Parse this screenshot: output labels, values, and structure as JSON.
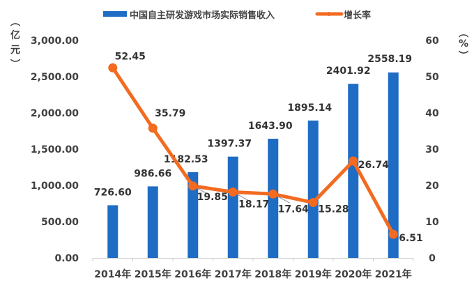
{
  "chart_data": {
    "type": "bar+line",
    "title": "",
    "categories": [
      "2014年",
      "2015年",
      "2016年",
      "2017年",
      "2018年",
      "2019年",
      "2020年",
      "2021年"
    ],
    "series": [
      {
        "name": "中国自主研发游戏市场实际销售收入",
        "type": "bar",
        "axis": "left",
        "color": "#1F6CC4",
        "values": [
          726.6,
          986.66,
          1182.53,
          1397.37,
          1643.9,
          1895.14,
          2401.92,
          2558.19
        ],
        "labels": [
          "726.60",
          "986.66",
          "1182.53",
          "1397.37",
          "1643.90",
          "1895.14",
          "2401.92",
          "2558.19"
        ]
      },
      {
        "name": "增长率",
        "type": "line",
        "axis": "right",
        "color": "#F26B21",
        "values": [
          52.45,
          35.79,
          19.85,
          18.17,
          17.64,
          15.28,
          26.74,
          6.51
        ],
        "labels": [
          "52.45",
          "35.79",
          "19.85",
          "18.17",
          "17.64",
          "15.28",
          "26.74",
          "6.51"
        ]
      }
    ],
    "left_axis": {
      "label": "（亿元）",
      "label_chars": [
        "︵",
        "亿",
        "元",
        "︶"
      ],
      "ylim": [
        0,
        3000
      ],
      "ticks": [
        "0.00",
        "500.00",
        "1,000.00",
        "1,500.00",
        "2,000.00",
        "2,500.00",
        "3,000.00"
      ]
    },
    "right_axis": {
      "label": "（%）",
      "label_chars": [
        "︵",
        "%",
        "︶"
      ],
      "ylim": [
        0,
        60
      ],
      "ticks": [
        "0",
        "10",
        "20",
        "30",
        "40",
        "50",
        "60"
      ]
    },
    "grid": false,
    "legend_position": "top"
  },
  "legend": {
    "bar_label": "中国自主研发游戏市场实际销售收入",
    "line_label": "增长率"
  }
}
